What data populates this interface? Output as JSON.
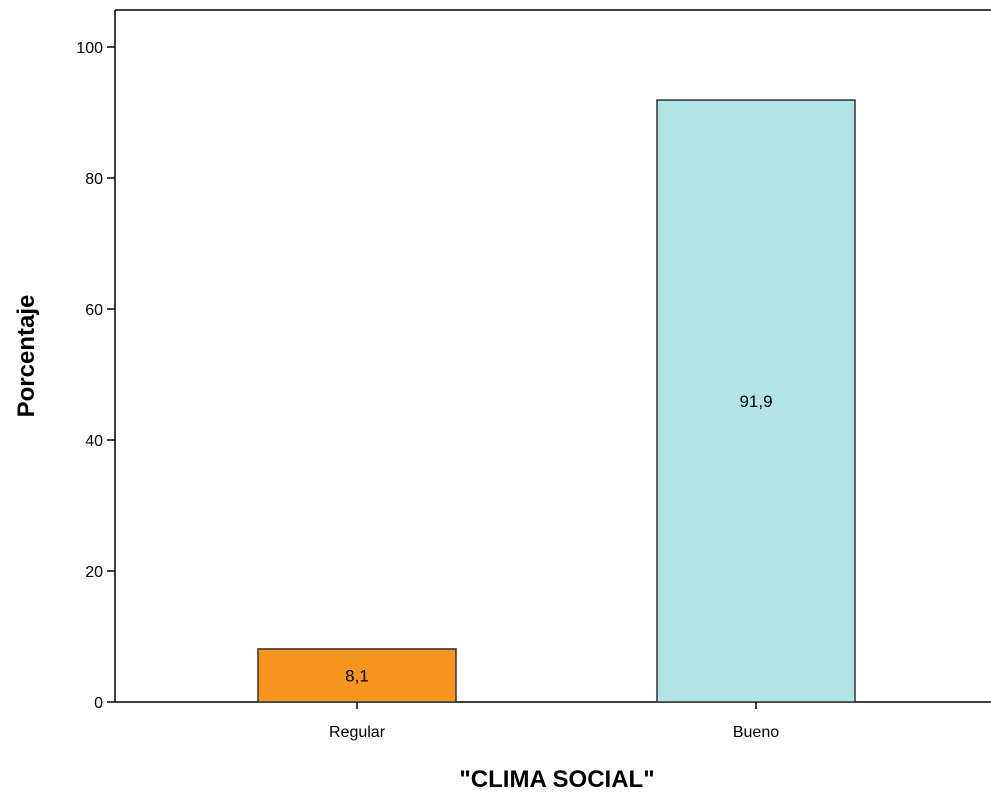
{
  "chart_data": {
    "type": "bar",
    "categories": [
      "Regular",
      "Bueno"
    ],
    "values": [
      8.1,
      91.9
    ],
    "data_labels": [
      "8,1",
      "91,9"
    ],
    "title": "",
    "xlabel": "\"CLIMA SOCIAL\"",
    "ylabel": "Porcentaje",
    "ylim": [
      0,
      105
    ],
    "yticks": [
      0,
      20,
      40,
      60,
      80,
      100
    ],
    "ytick_labels": [
      "0",
      "20",
      "40",
      "60",
      "80",
      "100"
    ],
    "grid": false,
    "legend": "none",
    "bar_colors": [
      "#f7961e",
      "#b3e5e6"
    ],
    "bar_edge_color": "#333333",
    "axis_color": "#000000"
  }
}
